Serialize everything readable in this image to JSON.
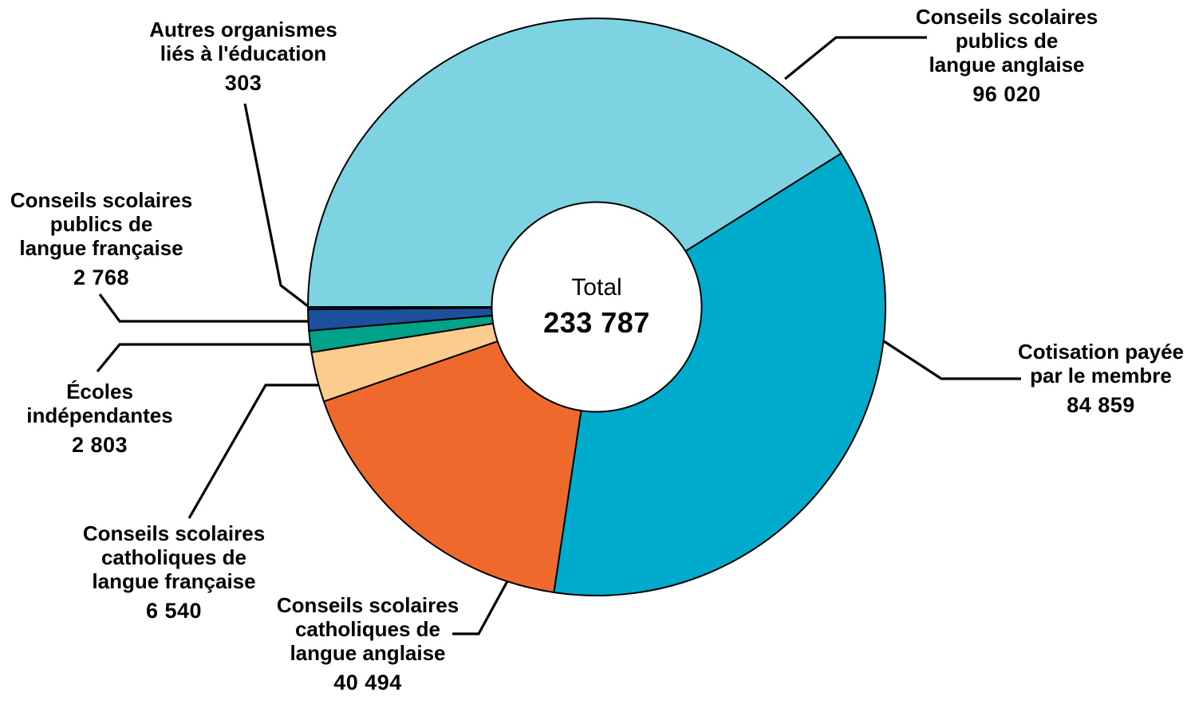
{
  "chart_data": {
    "type": "pie",
    "variant": "donut",
    "direction": "clockwise",
    "start_position": "9-oclock",
    "background_color": "#FFFFFF",
    "outline_color": "#000000",
    "center": {
      "label": "Total",
      "value": "233 787",
      "total": 233787
    },
    "slices": [
      {
        "key": "anglais_public",
        "label": "Conseils scolaires publics de langue anglaise",
        "label_lines": [
          "Conseils scolaires",
          "publics de",
          "langue anglaise"
        ],
        "value": 96020,
        "display_value": "96 020",
        "color": "#7DD3E2"
      },
      {
        "key": "cotisation",
        "label": "Cotisation payée par le membre",
        "label_lines": [
          "Cotisation payée",
          "par le membre"
        ],
        "value": 84859,
        "display_value": "84 859",
        "color": "#00ABCB"
      },
      {
        "key": "catholique_anglais",
        "label": "Conseils scolaires catholiques de langue anglaise",
        "label_lines": [
          "Conseils scolaires",
          "catholiques de",
          "langue anglaise"
        ],
        "value": 40494,
        "display_value": "40 494",
        "color": "#F0692C"
      },
      {
        "key": "catholique_francais",
        "label": "Conseils scolaires catholiques de langue française",
        "label_lines": [
          "Conseils scolaires",
          "catholiques de",
          "langue française"
        ],
        "value": 6540,
        "display_value": "6 540",
        "color": "#FACC8D"
      },
      {
        "key": "ecoles_independantes",
        "label": "Écoles indépendantes",
        "label_lines": [
          "Écoles",
          "indépendantes"
        ],
        "value": 2803,
        "display_value": "2 803",
        "color": "#00A389"
      },
      {
        "key": "public_francais",
        "label": "Conseils scolaires publics de langue française",
        "label_lines": [
          "Conseils scolaires",
          "publics de",
          "langue française"
        ],
        "value": 2768,
        "display_value": "2 768",
        "color": "#1C4F9C"
      },
      {
        "key": "autres_organismes",
        "label": "Autres organismes liés à l'éducation",
        "label_lines": [
          "Autres organismes",
          "liés à l'éducation"
        ],
        "value": 303,
        "display_value": "303",
        "color": "#12294F"
      }
    ]
  }
}
